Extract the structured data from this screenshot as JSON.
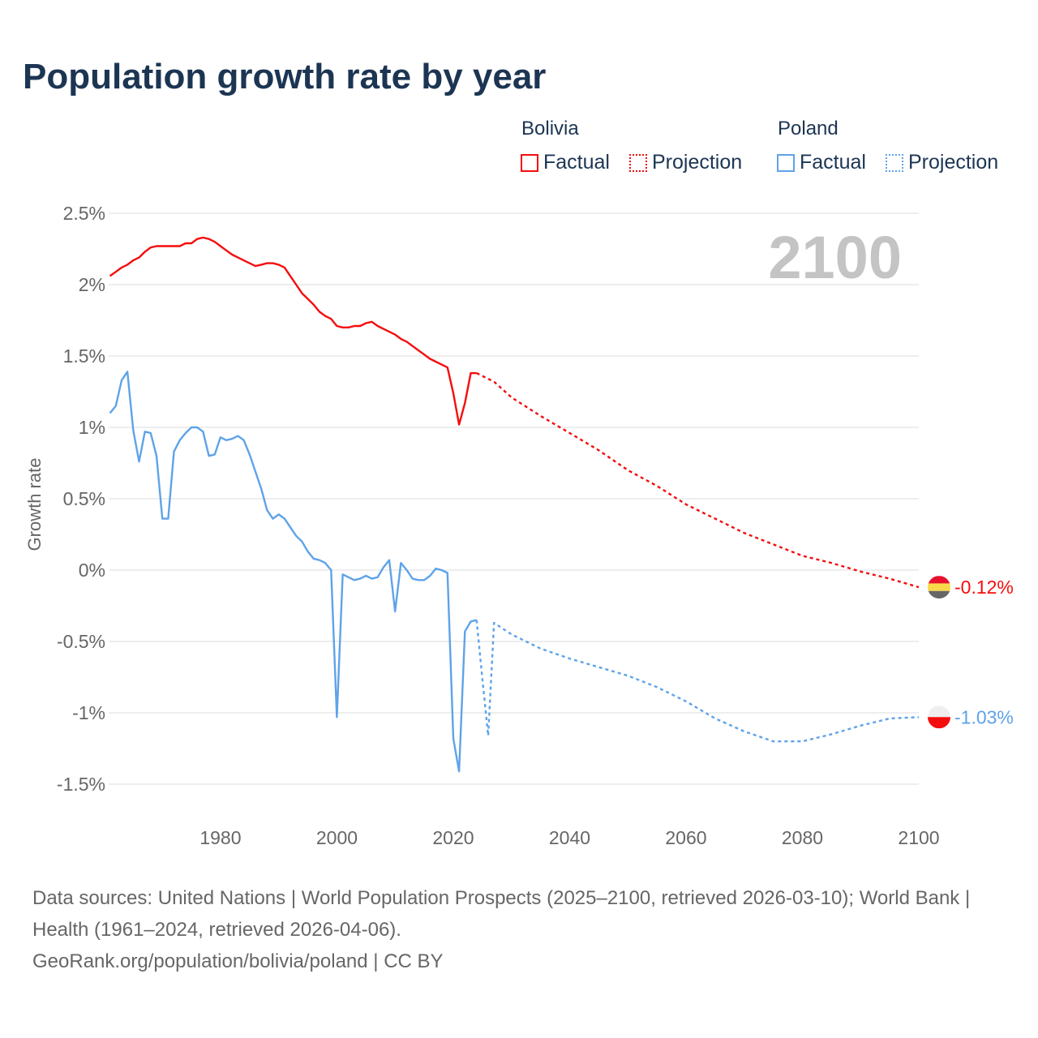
{
  "title": "Population growth rate by year",
  "legend": {
    "groups": [
      {
        "name": "Bolivia",
        "color": "#f40d0d",
        "factual": "Factual",
        "projection": "Projection"
      },
      {
        "name": "Poland",
        "color": "#5ea3e8",
        "factual": "Factual",
        "projection": "Projection"
      }
    ]
  },
  "year_watermark": "2100",
  "footer": {
    "sources": "Data sources: United Nations | World Population Prospects (2025–2100, retrieved 2026-03-10); World Bank | Health (1961–2024, retrieved 2026-04-06).",
    "link": "GeoRank.org/population/bolivia/poland | CC BY"
  },
  "chart_data": {
    "type": "line",
    "title": "Population growth rate by year",
    "xlabel": "",
    "ylabel": "Growth rate",
    "xlim": [
      1961,
      2100
    ],
    "ylim": [
      -1.5,
      2.5
    ],
    "x_ticks": [
      1980,
      2000,
      2020,
      2040,
      2060,
      2080,
      2100
    ],
    "x_tick_labels": [
      "1980",
      "2000",
      "2020",
      "2040",
      "2060",
      "2080",
      "2100"
    ],
    "y_ticks": [
      2.5,
      2,
      1.5,
      1,
      0.5,
      0,
      -0.5,
      -1,
      -1.5
    ],
    "y_tick_labels": [
      "2.5%",
      "2%",
      "1.5%",
      "1%",
      "0.5%",
      "0%",
      "-0.5%",
      "-1%",
      "-1.5%"
    ],
    "grid": true,
    "legend_position": "top-right",
    "series": [
      {
        "name": "Bolivia",
        "kind": "Factual",
        "color": "#f40d0d",
        "dashed": false,
        "x_start": 1961,
        "values": [
          2.06,
          2.09,
          2.12,
          2.14,
          2.17,
          2.19,
          2.23,
          2.26,
          2.27,
          2.27,
          2.27,
          2.27,
          2.27,
          2.29,
          2.29,
          2.32,
          2.33,
          2.32,
          2.3,
          2.27,
          2.24,
          2.21,
          2.19,
          2.17,
          2.15,
          2.13,
          2.14,
          2.15,
          2.15,
          2.14,
          2.12,
          2.06,
          2.0,
          1.94,
          1.9,
          1.86,
          1.81,
          1.78,
          1.76,
          1.71,
          1.7,
          1.7,
          1.71,
          1.71,
          1.73,
          1.74,
          1.71,
          1.69,
          1.67,
          1.65,
          1.62,
          1.6,
          1.57,
          1.54,
          1.51,
          1.48,
          1.46,
          1.44,
          1.42,
          1.24,
          1.02,
          1.17,
          1.38,
          1.38
        ]
      },
      {
        "name": "Bolivia",
        "kind": "Projection",
        "color": "#f40d0d",
        "dashed": true,
        "x": [
          2024,
          2027,
          2030,
          2035,
          2040,
          2045,
          2050,
          2055,
          2060,
          2065,
          2070,
          2075,
          2080,
          2085,
          2090,
          2095,
          2100
        ],
        "values": [
          1.38,
          1.32,
          1.21,
          1.08,
          0.96,
          0.84,
          0.7,
          0.59,
          0.46,
          0.36,
          0.26,
          0.18,
          0.1,
          0.05,
          -0.01,
          -0.06,
          -0.12
        ]
      },
      {
        "name": "Poland",
        "kind": "Factual",
        "color": "#5ea3e8",
        "dashed": false,
        "x_start": 1961,
        "values": [
          1.1,
          1.15,
          1.33,
          1.39,
          0.98,
          0.76,
          0.97,
          0.96,
          0.8,
          0.36,
          0.36,
          0.83,
          0.91,
          0.96,
          1.0,
          1.0,
          0.97,
          0.8,
          0.81,
          0.93,
          0.91,
          0.92,
          0.94,
          0.91,
          0.81,
          0.69,
          0.57,
          0.42,
          0.36,
          0.39,
          0.36,
          0.3,
          0.24,
          0.2,
          0.13,
          0.08,
          0.07,
          0.05,
          0.0,
          -1.03,
          -0.03,
          -0.05,
          -0.07,
          -0.06,
          -0.04,
          -0.06,
          -0.05,
          0.02,
          0.07,
          -0.29,
          0.05,
          0.0,
          -0.06,
          -0.07,
          -0.07,
          -0.04,
          0.01,
          0.0,
          -0.02,
          -1.18,
          -1.41,
          -0.43,
          -0.36,
          -0.35
        ]
      },
      {
        "name": "Poland",
        "kind": "Projection",
        "color": "#5ea3e8",
        "dashed": true,
        "x": [
          2024,
          2025,
          2026,
          2027,
          2030,
          2035,
          2040,
          2045,
          2050,
          2055,
          2060,
          2065,
          2070,
          2075,
          2080,
          2085,
          2090,
          2095,
          2100
        ],
        "values": [
          -0.35,
          -0.76,
          -1.16,
          -0.37,
          -0.45,
          -0.55,
          -0.62,
          -0.68,
          -0.74,
          -0.82,
          -0.92,
          -1.04,
          -1.13,
          -1.2,
          -1.2,
          -1.15,
          -1.09,
          -1.04,
          -1.03
        ]
      }
    ],
    "end_labels": [
      {
        "name": "Bolivia",
        "value": -0.12,
        "text": "-0.12%",
        "color": "#f40d0d"
      },
      {
        "name": "Poland",
        "value": -1.03,
        "text": "-1.03%",
        "color": "#5ea3e8"
      }
    ]
  }
}
